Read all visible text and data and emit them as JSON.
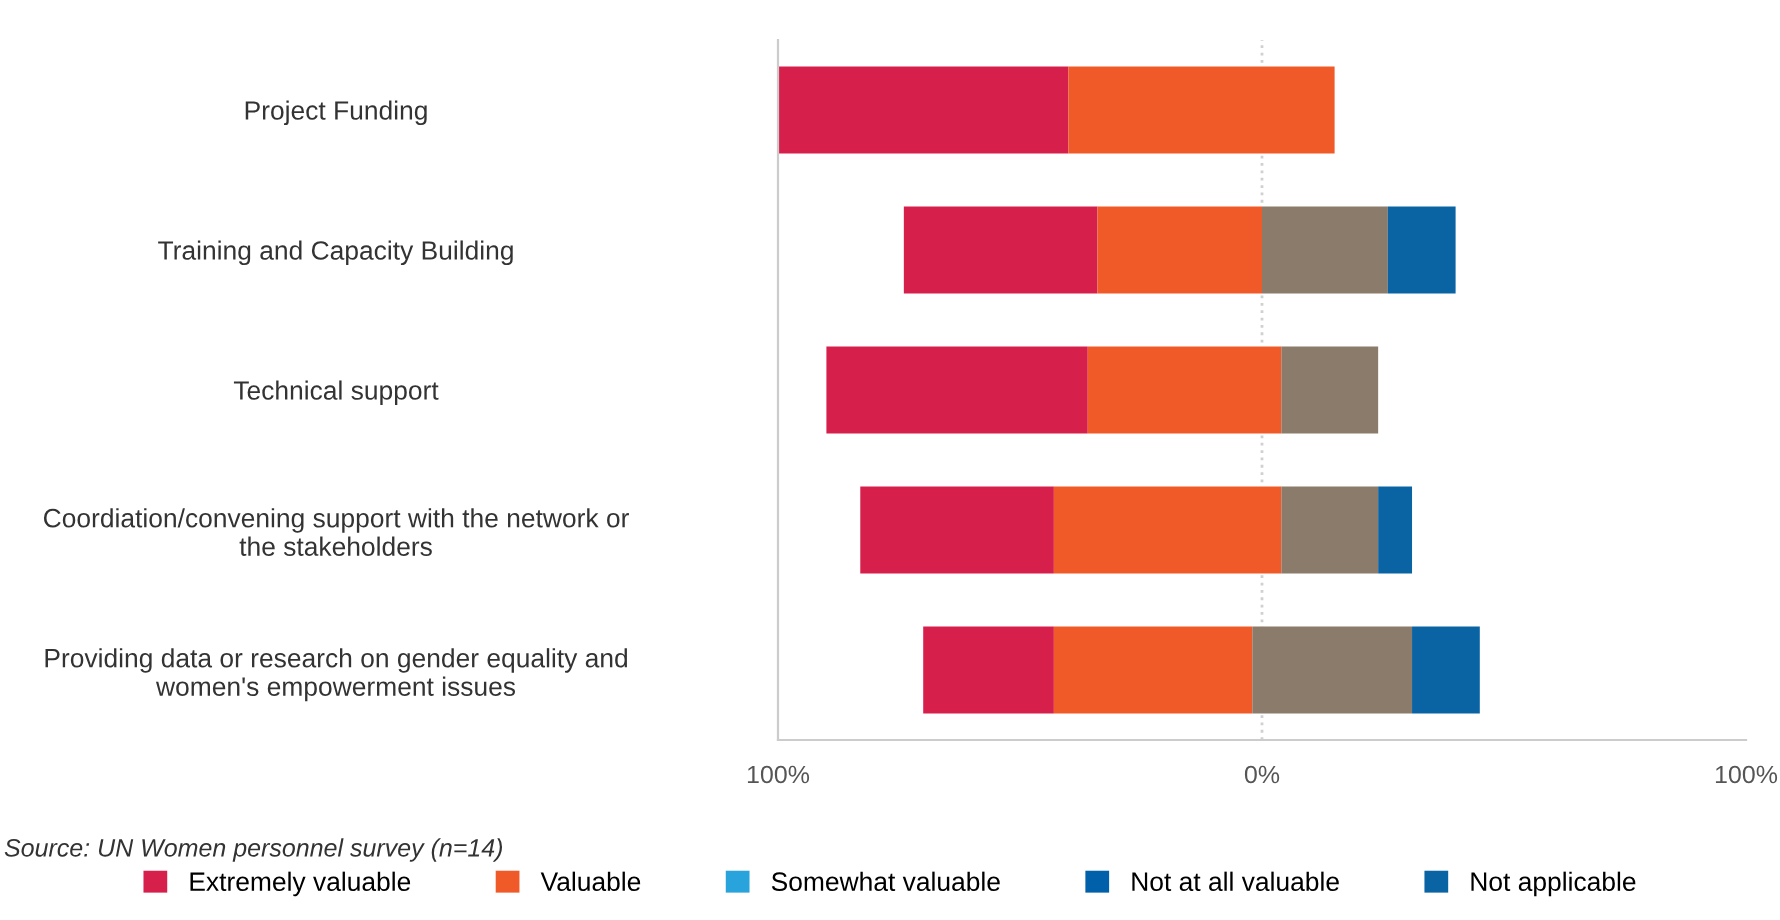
{
  "chart_data": {
    "type": "bar",
    "orientation": "horizontal",
    "categories": [
      "Project Funding",
      "Training and Capacity Building",
      "Technical support",
      "Coordiation/convening support with the network or\nthe stakeholders",
      "Providing data or research on gender equality and\nwomen's empowerment issues"
    ],
    "series": [
      {
        "name": "Extremely valuable",
        "color": "#d6204b",
        "base": [
          -100,
          -74,
          -90,
          -83,
          -70
        ],
        "values": [
          60,
          40,
          54,
          40,
          27
        ]
      },
      {
        "name": "Valuable",
        "color": "#f05a28",
        "base": [
          -40,
          -34,
          -36,
          -43,
          -43
        ],
        "values": [
          55,
          34,
          40,
          47,
          41
        ]
      },
      {
        "color": "#8b7b6b",
        "base": [
          null,
          0,
          4,
          4,
          -2
        ],
        "values": [
          null,
          26,
          20,
          20,
          33
        ]
      },
      {
        "name": "Somewhat valuable",
        "color": "#29a3db",
        "values": [
          null,
          null,
          null,
          null,
          null
        ]
      },
      {
        "name": "Not at all valuable",
        "color": "#0060a9",
        "values": [
          null,
          null,
          null,
          null,
          null
        ]
      },
      {
        "name": "Not applicable",
        "color": "#0a64a4",
        "base": [
          null,
          26,
          null,
          24,
          31
        ],
        "values": [
          null,
          14,
          null,
          7,
          14
        ]
      }
    ],
    "xlim": [
      -100,
      100
    ],
    "xticks": [
      {
        "value": -100,
        "label": "100%"
      },
      {
        "value": 0,
        "label": "0%"
      },
      {
        "value": 100,
        "label": "100%"
      }
    ],
    "ref_lines": [
      {
        "axis": "x",
        "value": 0,
        "color": "#d0d0d0",
        "line_style": "dotted"
      }
    ],
    "grid": false,
    "legend": "bottom",
    "annotations": [
      "Source: UN Women personnel survey (n=14)"
    ]
  }
}
